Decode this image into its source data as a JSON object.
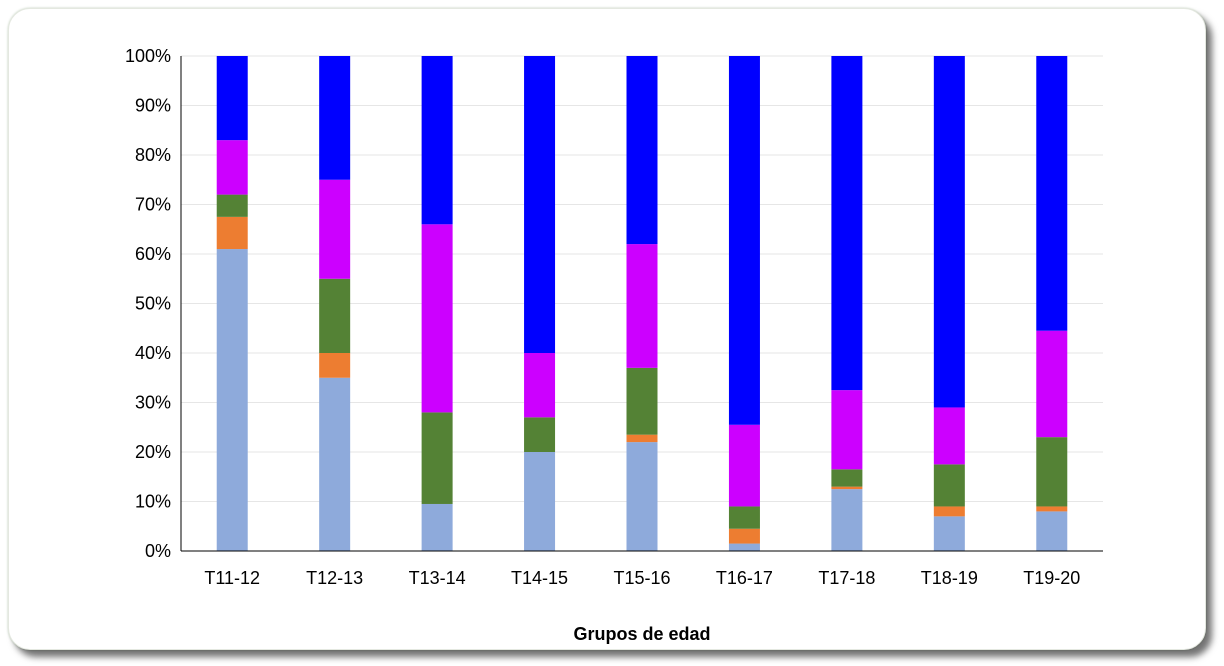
{
  "chart_data": {
    "type": "bar",
    "stacked": true,
    "percent_stacked": true,
    "xlabel": "Grupos de edad",
    "ylabel": "",
    "ylim": [
      0,
      100
    ],
    "yticks": [
      "0%",
      "10%",
      "20%",
      "30%",
      "40%",
      "50%",
      "60%",
      "70%",
      "80%",
      "90%",
      "100%"
    ],
    "grid": true,
    "legend": "none",
    "categories": [
      "T11-12",
      "T12-13",
      "T13-14",
      "T14-15",
      "T15-16",
      "T16-17",
      "T17-18",
      "T18-19",
      "T19-20"
    ],
    "series": [
      {
        "color": "#8eaadb",
        "values": [
          61,
          35,
          9.5,
          20,
          22,
          1.5,
          12.5,
          7,
          8
        ]
      },
      {
        "color": "#ed7d31",
        "values": [
          6.5,
          5,
          0,
          0,
          1.5,
          3,
          0.5,
          2,
          1
        ]
      },
      {
        "color": "#548235",
        "values": [
          4.5,
          15,
          18.5,
          7,
          13.5,
          4.5,
          3.5,
          8.5,
          14
        ]
      },
      {
        "color": "#cc00ff",
        "values": [
          11,
          20,
          38,
          13,
          25,
          16.5,
          16,
          11.5,
          21.5
        ]
      },
      {
        "color": "#0000ff",
        "values": [
          17,
          25,
          34,
          60,
          38,
          74.5,
          67.5,
          71,
          55.5
        ]
      }
    ]
  }
}
